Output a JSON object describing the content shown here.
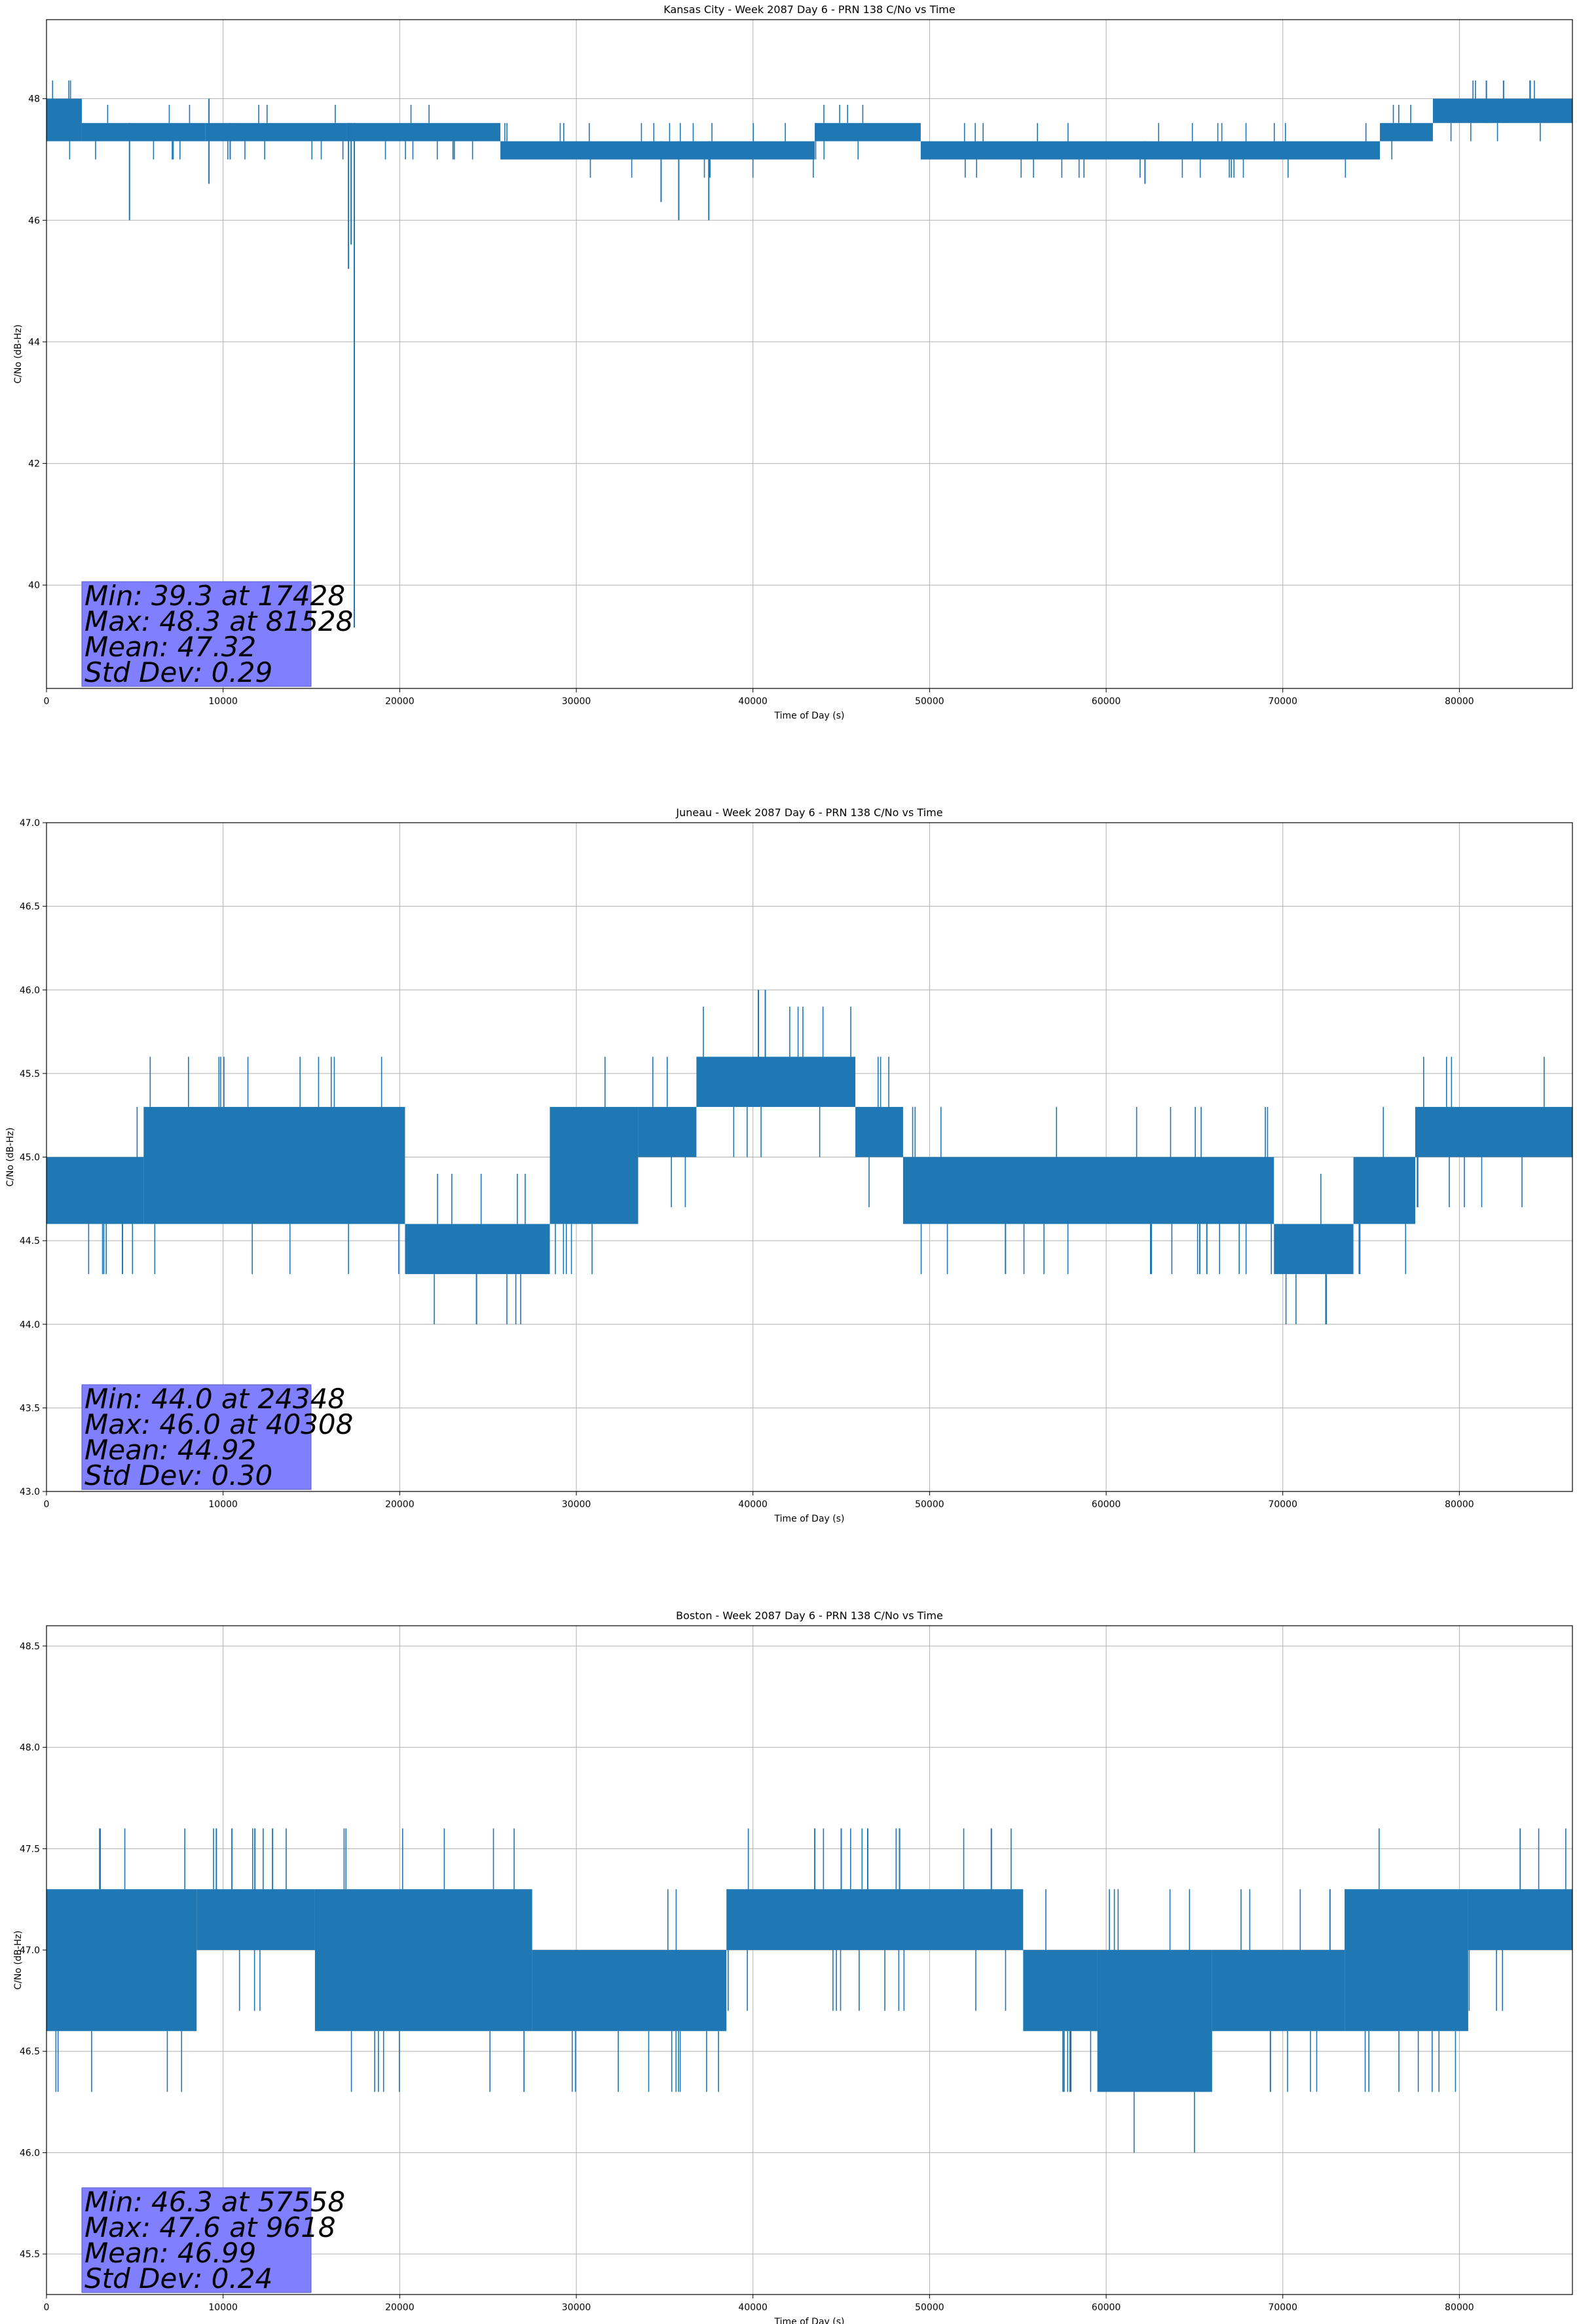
{
  "chart_data": [
    {
      "type": "line",
      "title": "Kansas City - Week 2087 Day 6 - PRN 138 C/No vs Time",
      "xlabel": "Time of Day (s)",
      "ylabel": "C/No (dB-Hz)",
      "xlim": [
        0,
        86400
      ],
      "ylim": [
        38.3,
        49.3
      ],
      "xticks": [
        "0",
        "10000",
        "20000",
        "30000",
        "40000",
        "50000",
        "60000",
        "70000",
        "80000"
      ],
      "yticks": [
        "40",
        "42",
        "44",
        "46",
        "48"
      ],
      "grid": true,
      "series_color": "#1f77b4",
      "stats": [
        "Min: 39.3 at 17428",
        "Max: 48.3 at 81528",
        "Mean: 47.32",
        "Std Dev: 0.29"
      ],
      "bands": [
        {
          "x": [
            0,
            2000
          ],
          "y": [
            47.3,
            48.0
          ]
        },
        {
          "x": [
            2000,
            9000
          ],
          "y": [
            47.3,
            47.6
          ]
        },
        {
          "x": [
            9000,
            17000
          ],
          "y": [
            47.3,
            47.6
          ]
        },
        {
          "x": [
            17000,
            25700
          ],
          "y": [
            47.3,
            47.6
          ]
        },
        {
          "x": [
            25700,
            43500
          ],
          "y": [
            47.0,
            47.3
          ]
        },
        {
          "x": [
            43500,
            49500
          ],
          "y": [
            47.3,
            47.6
          ]
        },
        {
          "x": [
            49500,
            75500
          ],
          "y": [
            47.0,
            47.3
          ]
        },
        {
          "x": [
            75500,
            78500
          ],
          "y": [
            47.3,
            47.6
          ]
        },
        {
          "x": [
            78500,
            86400
          ],
          "y": [
            47.6,
            48.0
          ]
        }
      ],
      "spikes": [
        {
          "x": 4700,
          "lo": 46.0,
          "hi": 47.6
        },
        {
          "x": 9200,
          "lo": 46.6,
          "hi": 48.0
        },
        {
          "x": 10400,
          "lo": 47.0,
          "hi": 47.6
        },
        {
          "x": 17100,
          "lo": 45.2,
          "hi": 47.6
        },
        {
          "x": 17250,
          "lo": 45.6,
          "hi": 47.6
        },
        {
          "x": 17428,
          "lo": 39.3,
          "hi": 47.6
        },
        {
          "x": 34800,
          "lo": 46.3,
          "hi": 47.3
        },
        {
          "x": 35800,
          "lo": 46.0,
          "hi": 47.3
        },
        {
          "x": 37500,
          "lo": 46.0,
          "hi": 47.3
        },
        {
          "x": 62200,
          "lo": 46.6,
          "hi": 47.3
        },
        {
          "x": 81528,
          "lo": 47.6,
          "hi": 48.3
        },
        {
          "x": 82500,
          "lo": 47.6,
          "hi": 48.3
        }
      ]
    },
    {
      "type": "line",
      "title": "Juneau - Week 2087 Day 6 - PRN 138 C/No vs Time",
      "xlabel": "Time of Day (s)",
      "ylabel": "C/No (dB-Hz)",
      "xlim": [
        0,
        86400
      ],
      "ylim": [
        43.0,
        47.0
      ],
      "xticks": [
        "0",
        "10000",
        "20000",
        "30000",
        "40000",
        "50000",
        "60000",
        "70000",
        "80000"
      ],
      "yticks": [
        "43.0",
        "43.5",
        "44.0",
        "44.5",
        "45.0",
        "45.5",
        "46.0",
        "46.5",
        "47.0"
      ],
      "grid": true,
      "series_color": "#1f77b4",
      "stats": [
        "Min: 44.0 at 24348",
        "Max: 46.0 at 40308",
        "Mean: 44.92",
        "Std Dev: 0.30"
      ],
      "bands": [
        {
          "x": [
            0,
            5500
          ],
          "y": [
            44.6,
            45.0
          ]
        },
        {
          "x": [
            5500,
            20300
          ],
          "y": [
            44.6,
            45.3
          ]
        },
        {
          "x": [
            20300,
            28500
          ],
          "y": [
            44.3,
            44.6
          ]
        },
        {
          "x": [
            28500,
            33500
          ],
          "y": [
            44.6,
            45.3
          ]
        },
        {
          "x": [
            33500,
            36800
          ],
          "y": [
            45.0,
            45.3
          ]
        },
        {
          "x": [
            36800,
            45800
          ],
          "y": [
            45.3,
            45.6
          ]
        },
        {
          "x": [
            45800,
            48500
          ],
          "y": [
            45.0,
            45.3
          ]
        },
        {
          "x": [
            48500,
            69500
          ],
          "y": [
            44.6,
            45.0
          ]
        },
        {
          "x": [
            69500,
            74000
          ],
          "y": [
            44.3,
            44.6
          ]
        },
        {
          "x": [
            74000,
            77500
          ],
          "y": [
            44.6,
            45.0
          ]
        },
        {
          "x": [
            77500,
            86400
          ],
          "y": [
            45.0,
            45.3
          ]
        }
      ],
      "spikes": [
        {
          "x": 4300,
          "lo": 44.3,
          "hi": 45.0
        },
        {
          "x": 24348,
          "lo": 44.0,
          "hi": 44.6
        },
        {
          "x": 40308,
          "lo": 45.3,
          "hi": 46.0
        },
        {
          "x": 40700,
          "lo": 45.3,
          "hi": 46.0
        },
        {
          "x": 54300,
          "lo": 44.3,
          "hi": 45.0
        },
        {
          "x": 65300,
          "lo": 44.3,
          "hi": 45.0
        },
        {
          "x": 65700,
          "lo": 44.3,
          "hi": 45.0
        }
      ]
    },
    {
      "type": "line",
      "title": "Boston - Week 2087 Day 6 - PRN 138 C/No vs Time",
      "xlabel": "Time of Day (s)",
      "ylabel": "C/No (dB-Hz)",
      "xlim": [
        0,
        86400
      ],
      "ylim": [
        45.3,
        48.6
      ],
      "xticks": [
        "0",
        "10000",
        "20000",
        "30000",
        "40000",
        "50000",
        "60000",
        "70000",
        "80000"
      ],
      "yticks": [
        "45.5",
        "46.0",
        "46.5",
        "47.0",
        "47.5",
        "48.0",
        "48.5"
      ],
      "grid": true,
      "series_color": "#1f77b4",
      "stats": [
        "Min: 46.3 at 57558",
        "Max: 47.6 at 9618",
        "Mean: 46.99",
        "Std Dev: 0.24"
      ],
      "bands": [
        {
          "x": [
            0,
            8500
          ],
          "y": [
            46.6,
            47.3
          ]
        },
        {
          "x": [
            8500,
            15200
          ],
          "y": [
            47.0,
            47.3
          ]
        },
        {
          "x": [
            15200,
            27500
          ],
          "y": [
            46.6,
            47.3
          ]
        },
        {
          "x": [
            27500,
            38500
          ],
          "y": [
            46.6,
            47.0
          ]
        },
        {
          "x": [
            38500,
            55300
          ],
          "y": [
            47.0,
            47.3
          ]
        },
        {
          "x": [
            55300,
            59500
          ],
          "y": [
            46.6,
            47.0
          ]
        },
        {
          "x": [
            59500,
            66000
          ],
          "y": [
            46.3,
            47.0
          ]
        },
        {
          "x": [
            66000,
            73500
          ],
          "y": [
            46.6,
            47.0
          ]
        },
        {
          "x": [
            73500,
            80500
          ],
          "y": [
            46.6,
            47.3
          ]
        },
        {
          "x": [
            80500,
            86400
          ],
          "y": [
            47.0,
            47.3
          ]
        }
      ],
      "spikes": [
        {
          "x": 9618,
          "lo": 47.0,
          "hi": 47.6
        },
        {
          "x": 10500,
          "lo": 47.0,
          "hi": 47.6
        },
        {
          "x": 11800,
          "lo": 47.0,
          "hi": 47.6
        },
        {
          "x": 12800,
          "lo": 47.0,
          "hi": 47.6
        },
        {
          "x": 43500,
          "lo": 47.0,
          "hi": 47.6
        },
        {
          "x": 45000,
          "lo": 47.0,
          "hi": 47.6
        },
        {
          "x": 46500,
          "lo": 47.0,
          "hi": 47.6
        },
        {
          "x": 48300,
          "lo": 47.0,
          "hi": 47.6
        },
        {
          "x": 53500,
          "lo": 47.0,
          "hi": 47.6
        },
        {
          "x": 57558,
          "lo": 46.3,
          "hi": 46.6
        },
        {
          "x": 58000,
          "lo": 46.3,
          "hi": 46.6
        },
        {
          "x": 69300,
          "lo": 46.3,
          "hi": 46.6
        }
      ]
    }
  ]
}
